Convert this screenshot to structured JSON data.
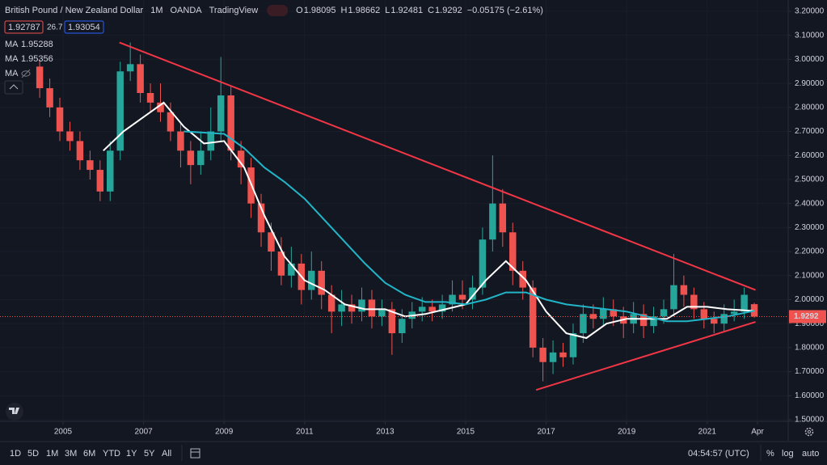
{
  "chart_data": {
    "type": "candlestick",
    "title_parts": [
      "British Pound / New Zealand Dollar",
      "1M",
      "OANDA",
      "TradingView"
    ],
    "ohlc_labels": [
      "O",
      "H",
      "L",
      "C"
    ],
    "change_label": "−0.05175 (−2.61%)",
    "quote": {
      "bid": 1.92787,
      "spread": 26.7,
      "ask": 1.93054
    },
    "hidden_indicator": "MA",
    "up_color": "#26a69a",
    "down_color": "#ef5350",
    "x": [
      2004.42,
      2004.67,
      2004.92,
      2005.17,
      2005.42,
      2005.67,
      2005.92,
      2006.17,
      2006.42,
      2006.67,
      2006.92,
      2007.17,
      2007.42,
      2007.67,
      2007.92,
      2008.17,
      2008.42,
      2008.67,
      2008.92,
      2009.17,
      2009.42,
      2009.67,
      2009.92,
      2010.17,
      2010.42,
      2010.67,
      2010.92,
      2011.17,
      2011.42,
      2011.67,
      2011.92,
      2012.17,
      2012.42,
      2012.67,
      2012.92,
      2013.17,
      2013.42,
      2013.67,
      2013.92,
      2014.17,
      2014.42,
      2014.67,
      2014.92,
      2015.17,
      2015.42,
      2015.67,
      2015.92,
      2016.17,
      2016.42,
      2016.67,
      2016.92,
      2017.17,
      2017.42,
      2017.67,
      2017.92,
      2018.17,
      2018.42,
      2018.67,
      2018.92,
      2019.17,
      2019.42,
      2019.67,
      2019.92,
      2020.17,
      2020.42,
      2020.67,
      2020.92,
      2021.17,
      2021.42,
      2021.67,
      2021.92,
      2022.17
    ],
    "open": [
      2.97,
      2.88,
      2.8,
      2.7,
      2.66,
      2.58,
      2.54,
      2.45,
      2.62,
      2.95,
      2.98,
      2.86,
      2.82,
      2.78,
      2.7,
      2.62,
      2.56,
      2.62,
      2.7,
      2.85,
      2.62,
      2.55,
      2.4,
      2.28,
      2.2,
      2.1,
      2.15,
      2.04,
      2.12,
      2.02,
      1.95,
      1.98,
      1.95,
      2.0,
      1.93,
      1.96,
      1.86,
      1.92,
      1.95,
      1.97,
      1.95,
      1.98,
      2.02,
      2.0,
      2.05,
      2.25,
      2.4,
      2.28,
      2.12,
      2.05,
      1.8,
      1.74,
      1.78,
      1.76,
      1.86,
      1.94,
      1.92,
      1.96,
      1.93,
      1.9,
      1.94,
      1.89,
      1.93,
      1.96,
      2.06,
      2.02,
      1.96,
      1.92,
      1.9,
      1.94,
      1.95,
      1.98095
    ],
    "high": [
      3.0,
      2.92,
      2.84,
      2.74,
      2.7,
      2.62,
      2.58,
      2.66,
      2.99,
      3.07,
      3.02,
      2.9,
      2.9,
      2.82,
      2.74,
      2.66,
      2.7,
      2.8,
      3.01,
      2.89,
      2.66,
      2.59,
      2.44,
      2.32,
      2.26,
      2.22,
      2.19,
      2.2,
      2.16,
      2.06,
      2.04,
      2.02,
      2.05,
      2.04,
      2.0,
      1.99,
      1.96,
      1.99,
      2.01,
      2.0,
      2.02,
      2.08,
      2.08,
      2.1,
      2.3,
      2.6,
      2.46,
      2.32,
      2.16,
      2.08,
      1.84,
      1.83,
      1.82,
      1.9,
      1.98,
      1.98,
      2.01,
      2.0,
      1.97,
      1.99,
      1.98,
      1.97,
      2.0,
      2.19,
      2.1,
      2.05,
      1.99,
      1.95,
      1.98,
      2.0,
      2.05,
      1.98662
    ],
    "low": [
      2.84,
      2.76,
      2.66,
      2.62,
      2.54,
      2.5,
      2.41,
      2.41,
      2.58,
      2.91,
      2.82,
      2.78,
      2.74,
      2.66,
      2.55,
      2.48,
      2.52,
      2.58,
      2.66,
      2.58,
      2.48,
      2.34,
      2.22,
      2.12,
      2.06,
      2.05,
      1.98,
      2.0,
      1.96,
      1.86,
      1.89,
      1.9,
      1.91,
      1.88,
      1.89,
      1.77,
      1.82,
      1.88,
      1.91,
      1.91,
      1.92,
      1.95,
      1.96,
      1.96,
      2.02,
      2.2,
      2.22,
      2.06,
      2.0,
      1.76,
      1.66,
      1.69,
      1.72,
      1.73,
      1.82,
      1.88,
      1.89,
      1.89,
      1.84,
      1.86,
      1.84,
      1.86,
      1.9,
      1.93,
      1.97,
      1.92,
      1.88,
      1.86,
      1.87,
      1.91,
      1.92,
      1.92481
    ],
    "close": [
      2.88,
      2.8,
      2.7,
      2.66,
      2.58,
      2.54,
      2.45,
      2.62,
      2.95,
      2.98,
      2.86,
      2.82,
      2.78,
      2.7,
      2.62,
      2.56,
      2.62,
      2.7,
      2.85,
      2.62,
      2.55,
      2.4,
      2.28,
      2.2,
      2.1,
      2.15,
      2.04,
      2.12,
      2.02,
      1.95,
      1.98,
      1.95,
      2.0,
      1.93,
      1.96,
      1.86,
      1.92,
      1.95,
      1.97,
      1.95,
      1.98,
      2.02,
      2.0,
      2.05,
      2.25,
      2.4,
      2.28,
      2.12,
      2.05,
      1.8,
      1.74,
      1.78,
      1.76,
      1.86,
      1.94,
      1.92,
      1.96,
      1.93,
      1.9,
      1.94,
      1.89,
      1.93,
      1.96,
      2.06,
      2.02,
      1.96,
      1.92,
      1.9,
      1.94,
      1.95,
      2.02,
      1.9292
    ],
    "series": [
      {
        "name": "MA",
        "color": "#ffffff",
        "x": [
          2006.0,
          2006.5,
          2007.0,
          2007.5,
          2008.0,
          2008.5,
          2009.0,
          2009.5,
          2010.0,
          2010.5,
          2011.0,
          2011.5,
          2012.0,
          2012.5,
          2013.0,
          2013.5,
          2014.0,
          2014.5,
          2015.0,
          2015.5,
          2016.0,
          2016.5,
          2017.0,
          2017.5,
          2018.0,
          2018.5,
          2019.0,
          2019.5,
          2020.0,
          2020.5,
          2021.0,
          2021.5,
          2022.17
        ],
        "values": [
          2.62,
          2.7,
          2.76,
          2.82,
          2.72,
          2.65,
          2.66,
          2.55,
          2.35,
          2.18,
          2.08,
          2.04,
          1.98,
          1.96,
          1.96,
          1.93,
          1.94,
          1.96,
          1.98,
          2.08,
          2.16,
          2.08,
          1.95,
          1.86,
          1.84,
          1.9,
          1.92,
          1.92,
          1.92,
          1.97,
          1.97,
          1.96,
          1.95288
        ]
      },
      {
        "name": "MA",
        "color": "#22b5c8",
        "x": [
          2008.0,
          2009.0,
          2009.5,
          2010.0,
          2010.5,
          2011.0,
          2011.5,
          2012.0,
          2012.5,
          2013.0,
          2013.5,
          2014.0,
          2014.5,
          2015.0,
          2015.5,
          2016.0,
          2016.5,
          2017.0,
          2017.5,
          2018.0,
          2018.5,
          2019.0,
          2019.5,
          2020.0,
          2020.5,
          2021.0,
          2021.5,
          2022.17
        ],
        "values": [
          2.7,
          2.69,
          2.63,
          2.55,
          2.49,
          2.42,
          2.33,
          2.24,
          2.15,
          2.07,
          2.02,
          1.99,
          1.99,
          1.98,
          2.0,
          2.03,
          2.03,
          2.0,
          1.98,
          1.97,
          1.96,
          1.95,
          1.93,
          1.91,
          1.91,
          1.92,
          1.93,
          1.95356
        ]
      }
    ],
    "trendlines": [
      {
        "color": "#f23645",
        "x": [
          2006.4,
          2022.2
        ],
        "values": [
          3.07,
          2.04
        ]
      },
      {
        "color": "#f23645",
        "x": [
          2016.75,
          2022.2
        ],
        "values": [
          1.624,
          1.907
        ]
      }
    ],
    "xlim": [
      2004,
      2023
    ],
    "xticks": [
      2005,
      2007,
      2009,
      2011,
      2013,
      2015,
      2017,
      2019,
      2021,
      {
        "value": 2022.25,
        "label": "Apr"
      }
    ],
    "ylim": [
      1.5,
      3.2
    ],
    "yticks": [
      {
        "value": 1.5,
        "label": "1.50000"
      },
      {
        "value": 1.6,
        "label": "1.60000"
      },
      {
        "value": 1.7,
        "label": "1.70000"
      },
      {
        "value": 1.8,
        "label": "1.80000"
      },
      {
        "value": 1.9,
        "label": "1.90000"
      },
      {
        "value": 2.0,
        "label": "2.00000"
      },
      {
        "value": 2.1,
        "label": "2.10000"
      },
      {
        "value": 2.2,
        "label": "2.20000"
      },
      {
        "value": 2.3,
        "label": "2.30000"
      },
      {
        "value": 2.4,
        "label": "2.40000"
      },
      {
        "value": 2.5,
        "label": "2.50000"
      },
      {
        "value": 2.6,
        "label": "2.60000"
      },
      {
        "value": 2.7,
        "label": "2.70000"
      },
      {
        "value": 2.8,
        "label": "2.80000"
      },
      {
        "value": 2.9,
        "label": "2.90000"
      },
      {
        "value": 3.0,
        "label": "3.00000"
      },
      {
        "value": 3.1,
        "label": "3.10000"
      },
      {
        "value": 3.2,
        "label": "3.20000"
      }
    ],
    "grid": true
  },
  "toolbar": {
    "ranges": [
      "1D",
      "5D",
      "1M",
      "3M",
      "6M",
      "YTD",
      "1Y",
      "5Y",
      "All"
    ],
    "clock": "04:54:57 (UTC)",
    "percent": "%",
    "log": "log",
    "auto": "auto"
  }
}
